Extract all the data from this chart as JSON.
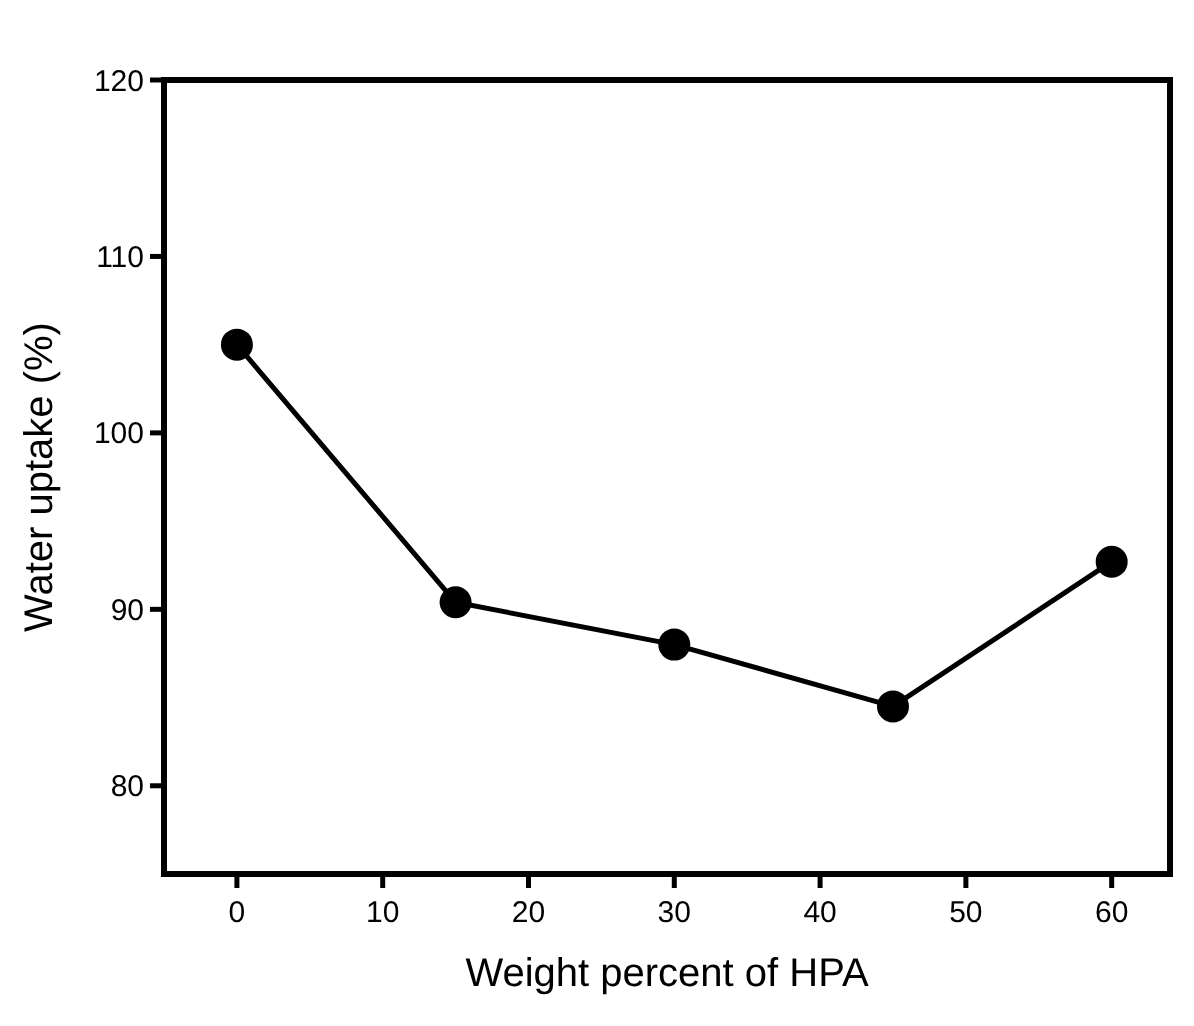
{
  "chart_data": {
    "type": "line",
    "xlabel": "Weight percent of HPA",
    "ylabel": "Water uptake (%)",
    "x": [
      0,
      15,
      30,
      45,
      60
    ],
    "series": [
      {
        "color": "#000000",
        "values": [
          105,
          90.4,
          88,
          84.5,
          92.7
        ]
      }
    ],
    "xlim": [
      -5,
      64
    ],
    "xticks": [
      0,
      10,
      20,
      30,
      40,
      50,
      60
    ],
    "ylim": [
      75,
      120
    ],
    "yticks": [
      80,
      90,
      100,
      110,
      120
    ],
    "marker": "circle",
    "line_style": "solid",
    "grid": false
  }
}
